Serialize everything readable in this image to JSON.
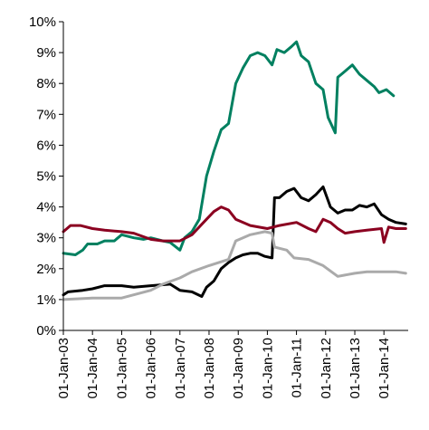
{
  "chart_data": {
    "type": "line",
    "title": "",
    "xlabel": "",
    "ylabel": "",
    "grid": false,
    "legend": "none",
    "x_range": [
      "2003-01-01",
      "2014-11-01"
    ],
    "ylim": [
      0,
      10
    ],
    "y_ticks": [
      0,
      1,
      2,
      3,
      4,
      5,
      6,
      7,
      8,
      9,
      10
    ],
    "y_tick_labels": [
      "0%",
      "1%",
      "2%",
      "3%",
      "4%",
      "5%",
      "6%",
      "7%",
      "8%",
      "9%",
      "10%"
    ],
    "x_ticks": [
      "2003-01-01",
      "2004-01-01",
      "2005-01-01",
      "2006-01-01",
      "2007-01-01",
      "2008-01-01",
      "2009-01-01",
      "2010-01-01",
      "2011-01-01",
      "2012-01-01",
      "2013-01-01",
      "2014-01-01"
    ],
    "x_tick_labels": [
      "01-Jan-03",
      "01-Jan-04",
      "01-Jan-05",
      "01-Jan-06",
      "01-Jan-07",
      "01-Jan-08",
      "01-Jan-09",
      "01-Jan-10",
      "01-Jan-11",
      "01-Jan-12",
      "01-Jan-13",
      "01-Jan-14"
    ],
    "series": [
      {
        "color": "#008060",
        "points": [
          [
            "2003-01-01",
            2.5
          ],
          [
            "2003-06-01",
            2.45
          ],
          [
            "2003-09-01",
            2.6
          ],
          [
            "2003-11-01",
            2.8
          ],
          [
            "2004-03-01",
            2.8
          ],
          [
            "2004-06-01",
            2.9
          ],
          [
            "2004-10-01",
            2.9
          ],
          [
            "2005-01-01",
            3.1
          ],
          [
            "2005-06-01",
            3.0
          ],
          [
            "2005-10-01",
            2.95
          ],
          [
            "2006-01-01",
            3.0
          ],
          [
            "2006-06-01",
            2.9
          ],
          [
            "2006-09-01",
            2.85
          ],
          [
            "2007-01-01",
            2.6
          ],
          [
            "2007-03-01",
            3.0
          ],
          [
            "2007-06-01",
            3.2
          ],
          [
            "2007-09-01",
            3.6
          ],
          [
            "2007-12-01",
            5.0
          ],
          [
            "2008-03-01",
            5.8
          ],
          [
            "2008-06-01",
            6.5
          ],
          [
            "2008-09-01",
            6.7
          ],
          [
            "2008-12-01",
            8.0
          ],
          [
            "2009-03-01",
            8.5
          ],
          [
            "2009-06-01",
            8.9
          ],
          [
            "2009-09-01",
            9.0
          ],
          [
            "2009-12-01",
            8.9
          ],
          [
            "2010-03-01",
            8.6
          ],
          [
            "2010-05-01",
            9.1
          ],
          [
            "2010-08-01",
            9.0
          ],
          [
            "2010-11-01",
            9.2
          ],
          [
            "2011-01-01",
            9.35
          ],
          [
            "2011-03-01",
            8.9
          ],
          [
            "2011-06-01",
            8.7
          ],
          [
            "2011-09-01",
            8.0
          ],
          [
            "2011-12-01",
            7.8
          ],
          [
            "2012-02-01",
            6.9
          ],
          [
            "2012-05-01",
            6.4
          ],
          [
            "2012-06-01",
            8.2
          ],
          [
            "2012-09-01",
            8.4
          ],
          [
            "2012-12-01",
            8.6
          ],
          [
            "2013-03-01",
            8.3
          ],
          [
            "2013-06-01",
            8.1
          ],
          [
            "2013-09-01",
            7.9
          ],
          [
            "2013-11-01",
            7.7
          ],
          [
            "2014-02-01",
            7.8
          ],
          [
            "2014-05-01",
            7.6
          ]
        ]
      },
      {
        "color": "#000000",
        "points": [
          [
            "2003-01-01",
            1.15
          ],
          [
            "2003-03-01",
            1.25
          ],
          [
            "2003-09-01",
            1.3
          ],
          [
            "2004-01-01",
            1.35
          ],
          [
            "2004-06-01",
            1.45
          ],
          [
            "2005-01-01",
            1.45
          ],
          [
            "2005-06-01",
            1.4
          ],
          [
            "2006-01-01",
            1.45
          ],
          [
            "2006-09-01",
            1.5
          ],
          [
            "2007-01-01",
            1.3
          ],
          [
            "2007-06-01",
            1.25
          ],
          [
            "2007-10-01",
            1.1
          ],
          [
            "2007-12-01",
            1.4
          ],
          [
            "2008-03-01",
            1.6
          ],
          [
            "2008-06-01",
            2.0
          ],
          [
            "2008-09-01",
            2.2
          ],
          [
            "2008-12-01",
            2.35
          ],
          [
            "2009-03-01",
            2.45
          ],
          [
            "2009-06-01",
            2.5
          ],
          [
            "2009-09-01",
            2.5
          ],
          [
            "2009-12-01",
            2.4
          ],
          [
            "2010-03-01",
            2.35
          ],
          [
            "2010-04-01",
            4.3
          ],
          [
            "2010-06-01",
            4.3
          ],
          [
            "2010-09-01",
            4.5
          ],
          [
            "2010-12-01",
            4.6
          ],
          [
            "2011-03-01",
            4.3
          ],
          [
            "2011-06-01",
            4.2
          ],
          [
            "2011-09-01",
            4.4
          ],
          [
            "2011-12-01",
            4.65
          ],
          [
            "2012-03-01",
            4.0
          ],
          [
            "2012-06-01",
            3.8
          ],
          [
            "2012-09-01",
            3.9
          ],
          [
            "2012-12-01",
            3.9
          ],
          [
            "2013-03-01",
            4.05
          ],
          [
            "2013-06-01",
            4.0
          ],
          [
            "2013-09-01",
            4.1
          ],
          [
            "2013-12-01",
            3.75
          ],
          [
            "2014-03-01",
            3.6
          ],
          [
            "2014-06-01",
            3.5
          ],
          [
            "2014-10-01",
            3.45
          ]
        ]
      },
      {
        "color": "#8b0020",
        "points": [
          [
            "2003-01-01",
            3.2
          ],
          [
            "2003-04-01",
            3.4
          ],
          [
            "2003-08-01",
            3.4
          ],
          [
            "2004-01-01",
            3.3
          ],
          [
            "2004-06-01",
            3.25
          ],
          [
            "2005-01-01",
            3.2
          ],
          [
            "2005-06-01",
            3.15
          ],
          [
            "2006-01-01",
            2.95
          ],
          [
            "2006-06-01",
            2.9
          ],
          [
            "2007-01-01",
            2.9
          ],
          [
            "2007-06-01",
            3.1
          ],
          [
            "2007-12-01",
            3.6
          ],
          [
            "2008-03-01",
            3.85
          ],
          [
            "2008-06-01",
            4.0
          ],
          [
            "2008-09-01",
            3.9
          ],
          [
            "2008-12-01",
            3.6
          ],
          [
            "2009-06-01",
            3.4
          ],
          [
            "2010-01-01",
            3.3
          ],
          [
            "2010-06-01",
            3.4
          ],
          [
            "2011-01-01",
            3.5
          ],
          [
            "2011-06-01",
            3.3
          ],
          [
            "2011-09-01",
            3.2
          ],
          [
            "2011-12-01",
            3.6
          ],
          [
            "2012-03-01",
            3.5
          ],
          [
            "2012-06-01",
            3.3
          ],
          [
            "2012-09-01",
            3.15
          ],
          [
            "2013-01-01",
            3.2
          ],
          [
            "2013-06-01",
            3.25
          ],
          [
            "2013-12-01",
            3.3
          ],
          [
            "2014-01-01",
            2.85
          ],
          [
            "2014-03-01",
            3.35
          ],
          [
            "2014-06-01",
            3.3
          ],
          [
            "2014-10-01",
            3.3
          ]
        ]
      },
      {
        "color": "#aaaaaa",
        "points": [
          [
            "2003-01-01",
            1.0
          ],
          [
            "2004-01-01",
            1.05
          ],
          [
            "2005-01-01",
            1.05
          ],
          [
            "2006-01-01",
            1.3
          ],
          [
            "2006-06-01",
            1.5
          ],
          [
            "2007-01-01",
            1.7
          ],
          [
            "2007-06-01",
            1.9
          ],
          [
            "2008-01-01",
            2.1
          ],
          [
            "2008-09-01",
            2.3
          ],
          [
            "2008-12-01",
            2.9
          ],
          [
            "2009-03-01",
            3.0
          ],
          [
            "2009-06-01",
            3.1
          ],
          [
            "2009-12-01",
            3.2
          ],
          [
            "2010-03-01",
            3.15
          ],
          [
            "2010-04-01",
            2.7
          ],
          [
            "2010-09-01",
            2.6
          ],
          [
            "2010-12-01",
            2.35
          ],
          [
            "2011-06-01",
            2.3
          ],
          [
            "2011-12-01",
            2.1
          ],
          [
            "2012-06-01",
            1.75
          ],
          [
            "2013-01-01",
            1.85
          ],
          [
            "2013-06-01",
            1.9
          ],
          [
            "2014-01-01",
            1.9
          ],
          [
            "2014-06-01",
            1.9
          ],
          [
            "2014-10-01",
            1.85
          ]
        ]
      }
    ]
  }
}
